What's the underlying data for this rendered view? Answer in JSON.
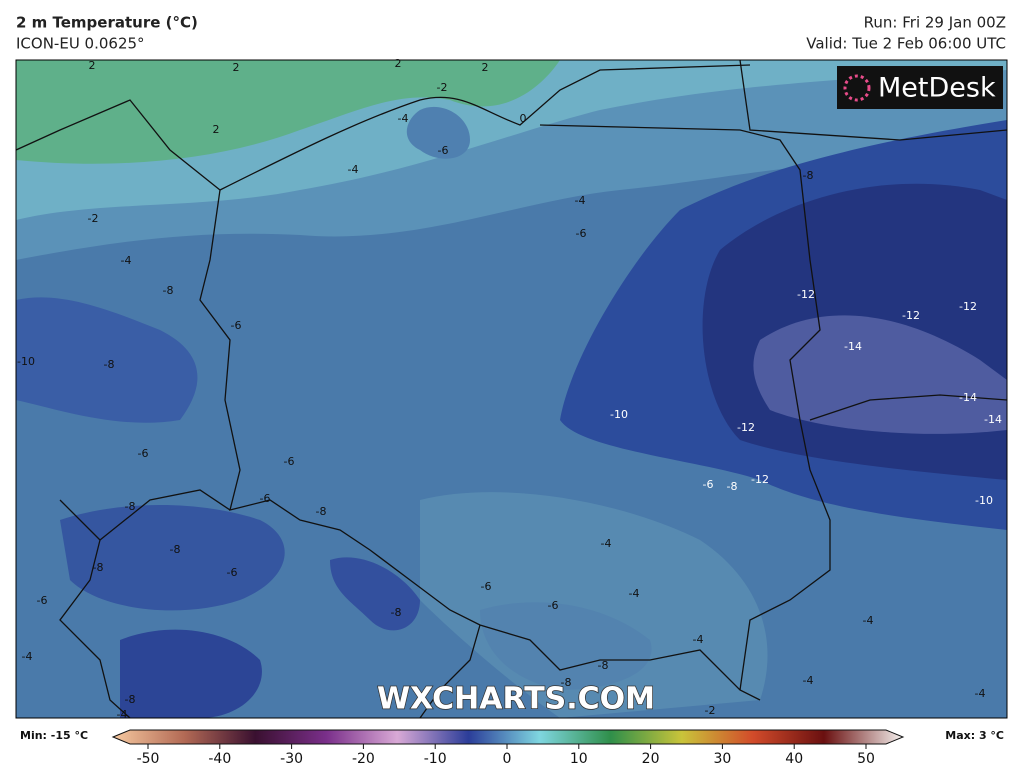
{
  "header": {
    "title": "2 m Temperature (°C)",
    "subtitle": "ICON-EU 0.0625°",
    "run": "Run: Fri 29 Jan 00Z",
    "valid": "Valid: Tue 2 Feb 06:00 UTC"
  },
  "logo": "MetDesk",
  "watermark": "WXCHARTS.COM",
  "contour_labels": [
    2,
    2,
    2,
    2,
    2,
    -2,
    0,
    -4,
    -6,
    -4,
    -8,
    -2,
    -4,
    -6,
    -4,
    -8,
    -12,
    -12,
    -12,
    -6,
    -10,
    -8,
    -14,
    -10,
    -12,
    -14,
    -14,
    -6,
    -6,
    -6,
    -8,
    -12,
    -6,
    -8,
    -8,
    -10,
    -8,
    -8,
    -6,
    -4,
    -6,
    -6,
    -4,
    -6,
    -8,
    -4,
    -4,
    -4,
    -8,
    -8,
    -4,
    -8,
    -4,
    -4,
    -2
  ],
  "colorbar": {
    "min_label": "Min: -15 °C",
    "max_label": "Max: 3 °C",
    "ticks": [
      -50,
      -40,
      -30,
      -20,
      -10,
      0,
      10,
      20,
      30,
      40,
      50
    ]
  }
}
